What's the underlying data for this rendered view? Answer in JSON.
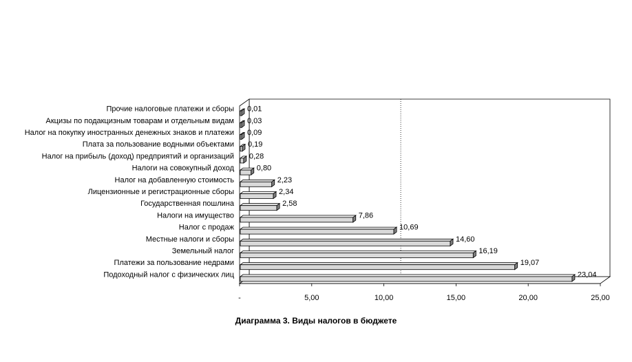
{
  "chart_data": {
    "type": "bar",
    "orientation": "horizontal",
    "style": "3d",
    "title": "Диаграмма 3. Виды налогов в бюджете",
    "xlabel": "",
    "ylabel": "",
    "xlim": [
      0,
      25
    ],
    "xticks": [
      0,
      5,
      10,
      15,
      20,
      25
    ],
    "xtick_labels": [
      "-",
      "5,00",
      "10,00",
      "15,00",
      "20,00",
      "25,00"
    ],
    "grid": false,
    "reference_line": 10.5,
    "legend": "none",
    "bar_fill": "#d9d9d9",
    "categories": [
      "Подоходный налог с физических лиц",
      "Платежи за пользование недрами",
      "Земельный налог",
      "Местные налоги и сборы",
      "Налог с продаж",
      "Налоги на имущество",
      "Государственная пошлина",
      "Лицензионные и регистрационные сборы",
      "Налог на добавленную стоимость",
      "Налоги на совокупный доход",
      "Налог на прибыль (доход) предприятий и организаций",
      "Плата за пользование водными объектами",
      "Налог на покупку иностранных денежных знаков  и платежи",
      "Акцизы по подакцизным товарам и отдельным видам",
      "Прочие налоговые платежи и сборы"
    ],
    "values": [
      23.04,
      19.07,
      16.19,
      14.6,
      10.69,
      7.86,
      2.58,
      2.34,
      2.23,
      0.8,
      0.28,
      0.19,
      0.09,
      0.03,
      0.01
    ],
    "value_labels": [
      "23,04",
      "19,07",
      "16,19",
      "14,60",
      "10,69",
      "7,86",
      "2,58",
      "2,34",
      "2,23",
      "0,80",
      "0,28",
      "0,19",
      "0,09",
      "0,03",
      "0,01"
    ]
  }
}
